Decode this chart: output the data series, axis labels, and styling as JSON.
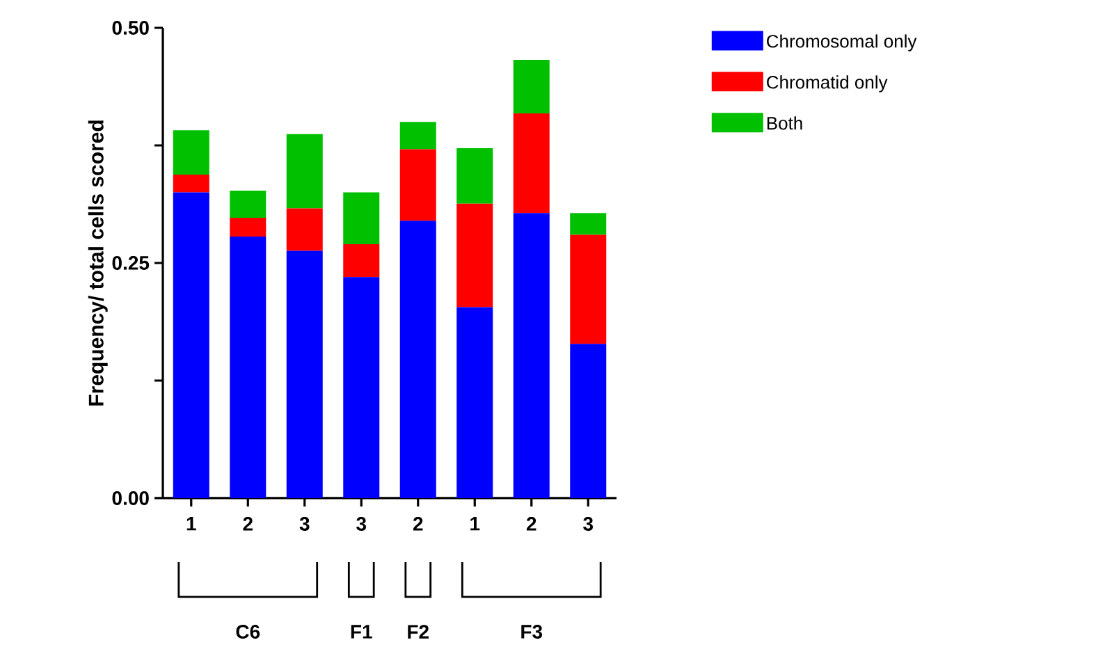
{
  "chart_data": {
    "type": "bar",
    "stacked": true,
    "ylabel": "Frequency/ total cells scored",
    "categories": [
      "1",
      "2",
      "3",
      "3",
      "2",
      "1",
      "2",
      "3"
    ],
    "series": [
      {
        "name": "Chromosomal only",
        "color": "#0000ff",
        "values": [
          0.325,
          0.278,
          0.263,
          0.235,
          0.295,
          0.203,
          0.303,
          0.164
        ]
      },
      {
        "name": "Chromatid only",
        "color": "#ff0000",
        "values": [
          0.019,
          0.02,
          0.045,
          0.035,
          0.076,
          0.11,
          0.106,
          0.116
        ]
      },
      {
        "name": "Both",
        "color": "#00c000",
        "values": [
          0.047,
          0.029,
          0.079,
          0.055,
          0.029,
          0.059,
          0.057,
          0.023
        ]
      }
    ],
    "ylim": [
      0,
      0.5
    ],
    "yticks": [
      {
        "value": 0,
        "label": "0.00"
      },
      {
        "value": 0.125,
        "label": null
      },
      {
        "value": 0.25,
        "label": "0.25"
      },
      {
        "value": 0.375,
        "label": null
      },
      {
        "value": 0.5,
        "label": "0.50"
      }
    ],
    "annotations": [
      "C6",
      "F1",
      "F2",
      "F3"
    ],
    "grid": false,
    "legend": "top right"
  }
}
